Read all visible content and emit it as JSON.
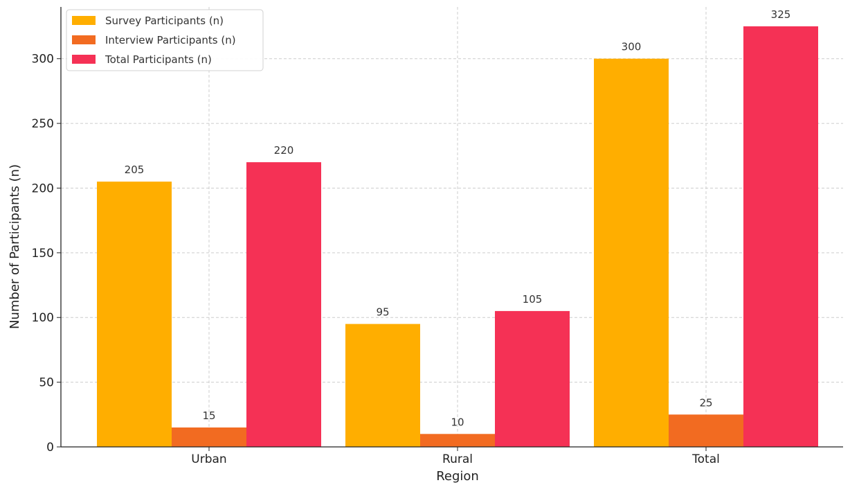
{
  "chart_data": {
    "type": "bar",
    "title": "",
    "xlabel": "Region",
    "ylabel": "Number of Participants (n)",
    "categories": [
      "Urban",
      "Rural",
      "Total"
    ],
    "series": [
      {
        "name": "Survey Participants (n)",
        "values": [
          205,
          95,
          300
        ],
        "color": "#FFAE00"
      },
      {
        "name": "Interview Participants (n)",
        "values": [
          15,
          10,
          25
        ],
        "color": "#F26B21"
      },
      {
        "name": "Total Participants (n)",
        "values": [
          220,
          105,
          325
        ],
        "color": "#F53155"
      }
    ],
    "ylim": [
      0,
      340
    ],
    "yticks": [
      0,
      50,
      100,
      150,
      200,
      250,
      300
    ],
    "grid": true,
    "legend_position": "top-left"
  }
}
